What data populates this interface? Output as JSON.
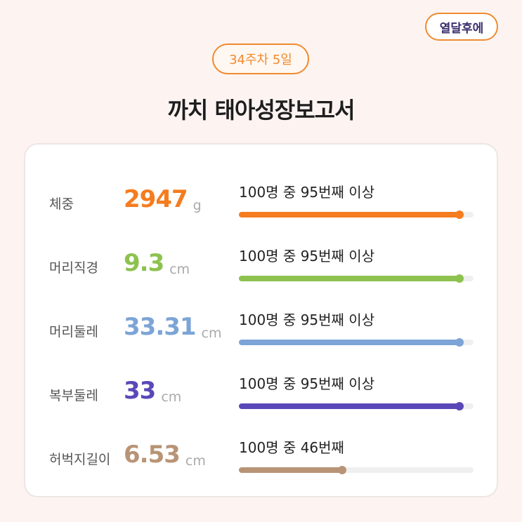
{
  "header": {
    "corner_badge": "열달후에",
    "week_badge": "34주차 5일",
    "title": "까치 태아성장보고서"
  },
  "rows": [
    {
      "label": "체중",
      "value": "2947",
      "unit": "g",
      "rank": "100명 중 95번째 이상",
      "percent": 94,
      "color": "#f57c1f"
    },
    {
      "label": "머리직경",
      "value": "9.3",
      "unit": "cm",
      "rank": "100명 중 95번째 이상",
      "percent": 94,
      "color": "#8dc24f"
    },
    {
      "label": "머리둘레",
      "value": "33.31",
      "unit": "cm",
      "rank": "100명 중 95번째 이상",
      "percent": 94,
      "color": "#7ca4d6"
    },
    {
      "label": "복부둘레",
      "value": "33",
      "unit": "cm",
      "rank": "100명 중 95번째 이상",
      "percent": 94,
      "color": "#5a48b8"
    },
    {
      "label": "허벅지길이",
      "value": "6.53",
      "unit": "cm",
      "rank": "100명 중 46번째",
      "percent": 44,
      "color": "#b89476"
    }
  ]
}
